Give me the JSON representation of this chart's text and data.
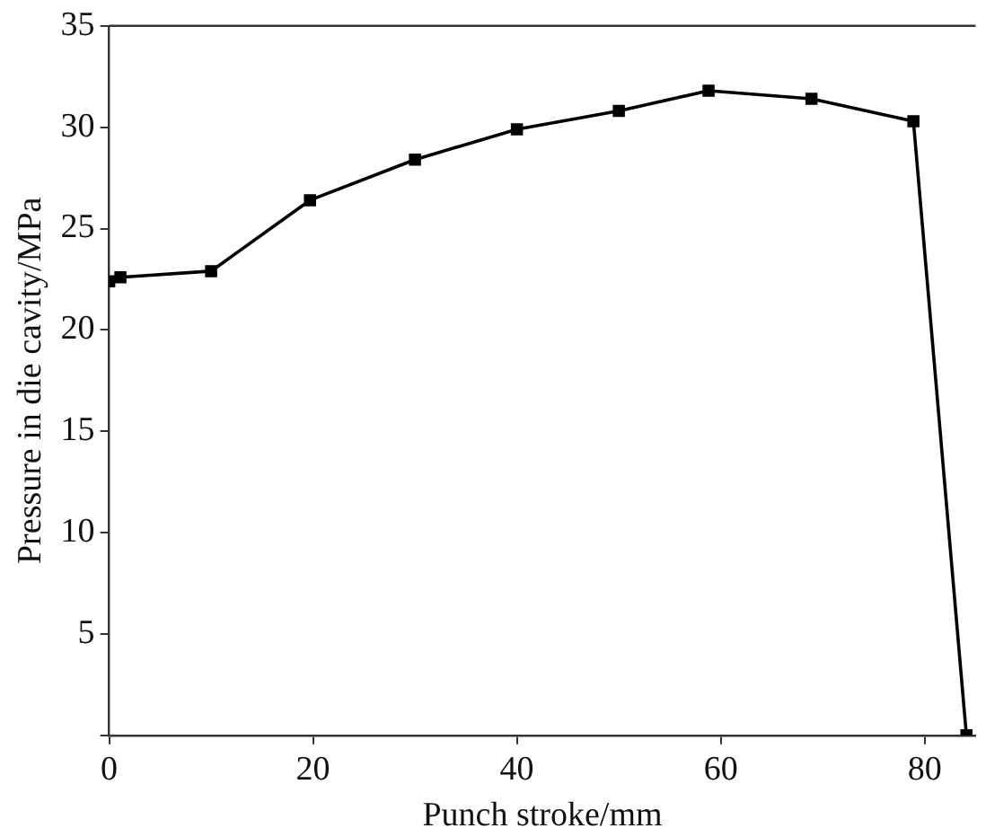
{
  "chart_data": {
    "type": "line",
    "xlabel": "Punch stroke/mm",
    "ylabel": "Pressure in die cavity/MPa",
    "x": [
      0,
      1.1,
      10,
      19.7,
      30,
      40,
      50,
      58.8,
      68.9,
      78.9,
      84.1
    ],
    "series": [
      {
        "color": "#000000",
        "values": [
          22.4,
          22.6,
          22.9,
          26.4,
          28.4,
          29.9,
          30.8,
          31.8,
          31.4,
          30.3,
          0
        ]
      }
    ],
    "xlim": [
      0,
      85
    ],
    "xticks": [
      0,
      20,
      40,
      60,
      80
    ],
    "ylim": [
      0,
      35
    ],
    "yticks": [
      {
        "value": 0,
        "label": null
      },
      5,
      10,
      15,
      20,
      25,
      30,
      35
    ],
    "grid": false,
    "legend": false,
    "marker": "square",
    "line_style": "solid"
  }
}
